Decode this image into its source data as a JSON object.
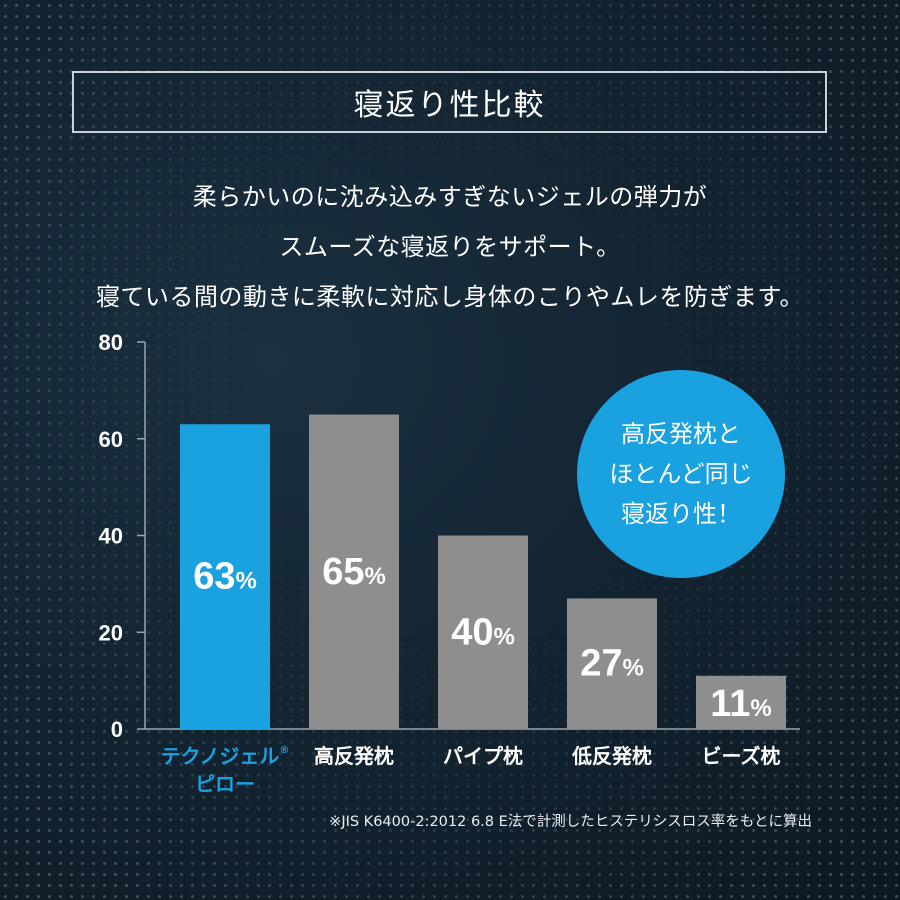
{
  "header": {
    "title": "寝返り性比較"
  },
  "description": {
    "lines": [
      "柔らかいのに沈み込みすぎないジェルの弾力が",
      "スムーズな寝返りをサポート。",
      "寝ている間の動きに柔軟に対応し身体のこりやムレを防ぎます。"
    ]
  },
  "callout": {
    "lines": [
      "高反発枕と",
      "ほとんど同じ",
      "寝返り性！"
    ],
    "color": "#1aa1e0"
  },
  "footnote": "※JIS K6400-2:2012 6.8 E法で計測したヒステリシスロス率をもとに算出",
  "chart_data": {
    "type": "bar",
    "title": "",
    "xlabel": "",
    "ylabel": "",
    "ylim": [
      0,
      80
    ],
    "yticks": [
      0,
      20,
      40,
      60,
      80
    ],
    "grid": false,
    "categories": [
      {
        "lines": [
          "テクノジェル®",
          "ピロー"
        ],
        "highlight": true
      },
      {
        "lines": [
          "高反発枕"
        ],
        "highlight": false
      },
      {
        "lines": [
          "パイプ枕"
        ],
        "highlight": false
      },
      {
        "lines": [
          "低反発枕"
        ],
        "highlight": false
      },
      {
        "lines": [
          "ビーズ枕"
        ],
        "highlight": false
      }
    ],
    "values": [
      63,
      65,
      40,
      27,
      11
    ],
    "value_suffix": "%",
    "colors": {
      "highlight": "#1aa1e0",
      "default": "#8e8e8e",
      "axis": "#9aa6ae"
    }
  }
}
